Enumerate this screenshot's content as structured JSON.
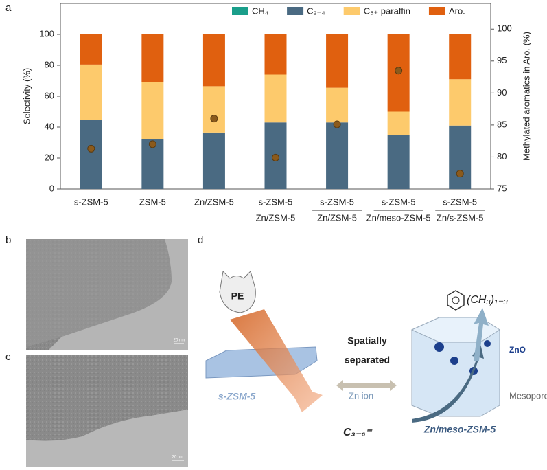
{
  "chart_data": {
    "type": "bar",
    "stacked": true,
    "panel_label": "a",
    "categories": [
      [
        "s-ZSM-5"
      ],
      [
        "ZSM-5"
      ],
      [
        "Zn/ZSM-5"
      ],
      [
        "s-ZSM-5",
        "Zn/ZSM-5"
      ],
      [
        "s-ZSM-5",
        "Zn/ZSM-5"
      ],
      [
        "s-ZSM-5",
        "Zn/meso-ZSM-5"
      ],
      [
        "s-ZSM-5",
        "Zn/s-ZSM-5"
      ]
    ],
    "series": [
      {
        "name": "CH₄",
        "color": "#1a9e8a",
        "values": [
          0,
          0,
          0,
          0,
          0,
          0,
          0
        ]
      },
      {
        "name": "C₂₋₄",
        "color": "#4a6a82",
        "values": [
          44.5,
          32,
          36.5,
          43,
          43,
          35,
          41
        ]
      },
      {
        "name": "C₅₊ paraffin",
        "color": "#fdca6c",
        "values": [
          36,
          37,
          30,
          31,
          22.5,
          15,
          30
        ]
      },
      {
        "name": "Aro.",
        "color": "#e0600f",
        "values": [
          19.5,
          31,
          33.5,
          26,
          34.5,
          50,
          29
        ]
      },
      {
        "color": "#8b5a1c",
        "axis": "y2",
        "values": [
          81.3,
          82.0,
          86.0,
          79.9,
          85.1,
          93.5,
          77.4
        ]
      }
    ],
    "ylabel": "Selectivity (%)",
    "y2label": "Methylated aromatics in Aro. (%)",
    "ylim": [
      0,
      120
    ],
    "yticks": [
      0,
      20,
      40,
      60,
      80,
      100
    ],
    "y2lim": [
      75,
      104
    ],
    "y2ticks": [
      75,
      80,
      85,
      90,
      95,
      100
    ]
  },
  "figure": {
    "panel_b": "b",
    "panel_c": "c",
    "panel_d": "d",
    "scale_b": "20 nm",
    "scale_c": "20 nm",
    "diagram": {
      "pe": "PE",
      "spatially": "Spatially",
      "separated": "separated",
      "s_zsm5": "s-ZSM-5",
      "zn_ion": "Zn ion",
      "mesopore": "Mesopore",
      "zno": "ZnO",
      "zn_meso": "Zn/meso-ZSM-5",
      "c36": "C₃₋₆⁼",
      "methyl": "(CH₃)₁₋₃"
    }
  }
}
